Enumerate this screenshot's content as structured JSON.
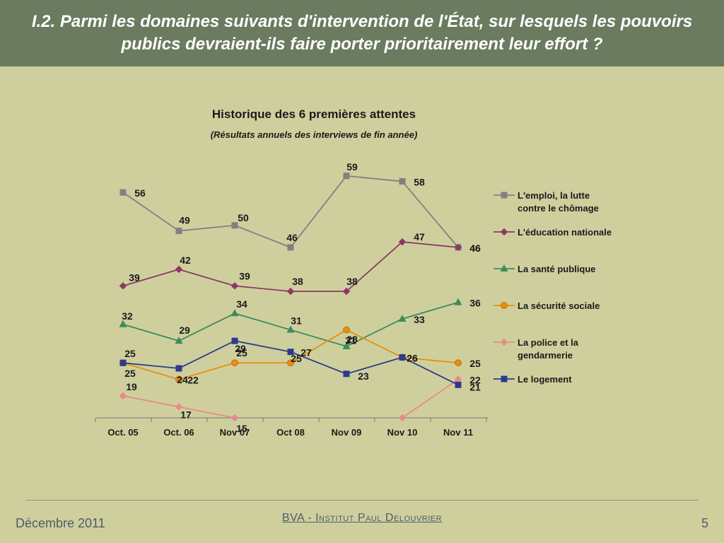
{
  "slide": {
    "title": "I.2. Parmi les domaines suivants d'intervention de l'État, sur lesquels les pouvoirs publics devraient-ils faire porter prioritairement leur effort ?"
  },
  "footer": {
    "date": "Décembre 2011",
    "source": "BVA - Institut Paul Delouvrier",
    "page": "5"
  },
  "chart_data": {
    "type": "line",
    "title": "Historique des 6 premières attentes",
    "subtitle": "(Résultats annuels des interviews de fin année)",
    "xlabel": "",
    "ylabel": "",
    "ylim": [
      15,
      60
    ],
    "grid": false,
    "legend_position": "right",
    "categories": [
      "Oct. 05",
      "Oct. 06",
      "Nov 07",
      "Oct 08",
      "Nov 09",
      "Nov 10",
      "Nov 11"
    ],
    "series": [
      {
        "name": "L'emploi, la lutte\ncontre le chômage",
        "color": "#808080",
        "marker": "square",
        "values": [
          56,
          49,
          50,
          46,
          59,
          58,
          46
        ]
      },
      {
        "name": "L'éducation nationale",
        "color": "#8b3a62",
        "marker": "diamond",
        "values": [
          39,
          42,
          39,
          38,
          38,
          47,
          46
        ]
      },
      {
        "name": "La santé publique",
        "color": "#3c8c5a",
        "marker": "triangle",
        "values": [
          32,
          29,
          34,
          31,
          28,
          33,
          36
        ]
      },
      {
        "name": "La sécurité sociale",
        "color": "#e8900c",
        "marker": "circle",
        "values": [
          25,
          22,
          25,
          25,
          31,
          26,
          25
        ]
      },
      {
        "name": "La police et la\ngendarmerie",
        "color": "#e88a8a",
        "marker": "diamond",
        "values": [
          19,
          17,
          15,
          null,
          null,
          15,
          22
        ]
      },
      {
        "name": "Le logement",
        "color": "#2e3a8c",
        "marker": "square",
        "values": [
          25,
          24,
          29,
          27,
          23,
          26,
          21
        ]
      }
    ],
    "data_labels": [
      [
        "56",
        "49",
        "50",
        "46",
        "59",
        "58",
        "46"
      ],
      [
        "39",
        "42",
        "39",
        "38",
        "38",
        "47",
        "46"
      ],
      [
        "32",
        "29",
        "34",
        "31",
        "28",
        "33",
        "36"
      ],
      [
        "25",
        "22",
        "25",
        "25",
        "31",
        "26",
        "25"
      ],
      [
        "19",
        "17",
        "15",
        "",
        "",
        "",
        "22"
      ],
      [
        "25",
        "24",
        "29",
        "27",
        "23",
        "26",
        "21"
      ]
    ]
  }
}
